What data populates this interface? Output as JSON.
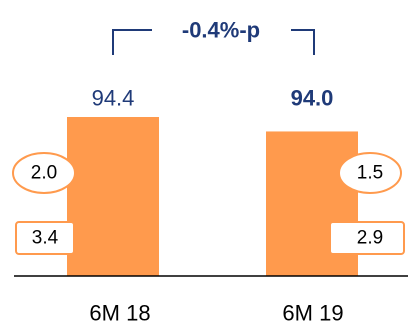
{
  "chart_data": {
    "type": "bar",
    "categories": [
      "6M 18",
      "6M 19"
    ],
    "values": [
      94.4,
      94.0
    ],
    "value_labels": [
      "94.4",
      "94.0"
    ],
    "emphasized_value": 1,
    "components": [
      {
        "shape": "oval",
        "values": [
          2.0,
          1.5
        ],
        "labels": [
          "2.0",
          "1.5"
        ]
      },
      {
        "shape": "box",
        "values": [
          3.4,
          2.9
        ],
        "labels": [
          "3.4",
          "2.9"
        ]
      }
    ],
    "change_label": "-0.4%-p",
    "ylim": [
      90,
      95
    ],
    "grid": false,
    "legend": "none"
  },
  "colors": {
    "bar": "#FF9A4D",
    "accent_text": "#1F3A78",
    "axis": "#000000"
  }
}
